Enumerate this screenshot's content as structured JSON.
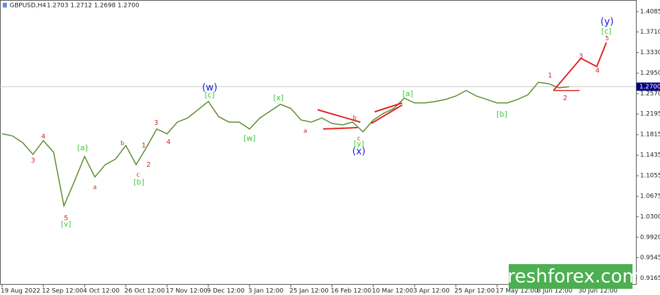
{
  "chart_data": {
    "type": "line",
    "symbol": "GBPUSD,H4",
    "ohlc": "1.2703 1.2712 1.2698 1.2700",
    "watermark": "freshforex.com",
    "color": "#5a8a28",
    "categories": [
      "19 Aug 2022",
      null,
      null,
      null,
      "12 Sep 12:00",
      null,
      null,
      null,
      "4 Oct 12:00",
      null,
      null,
      null,
      "26 Oct 12:00",
      null,
      null,
      null,
      "17 Nov 12:00",
      null,
      null,
      null,
      "9 Dec 12:00",
      null,
      null,
      null,
      "3 Jan 12:00",
      null,
      null,
      null,
      "25 Jan 12:00",
      null,
      null,
      null,
      "16 Feb 12:00",
      null,
      null,
      null,
      "10 Mar 12:00",
      null,
      null,
      null,
      "3 Apr 12:00",
      null,
      null,
      null,
      "25 Apr 12:00",
      null,
      null,
      null,
      "17 May 12:00",
      null,
      null,
      null,
      "8 Jun 12:00",
      null,
      null,
      null,
      "30 Jun 12:00",
      null,
      null,
      null,
      null,
      null
    ],
    "values": [
      1.183,
      1.1792,
      1.1666,
      1.145,
      1.1704,
      1.1488,
      1.05,
      1.0944,
      1.1412,
      1.1032,
      1.126,
      1.1362,
      1.1615,
      1.126,
      1.1577,
      1.1919,
      1.183,
      1.2046,
      1.2122,
      1.2274,
      1.2426,
      1.2147,
      1.2046,
      1.2046,
      1.1919,
      1.2122,
      1.2248,
      1.2375,
      1.2299,
      1.2084,
      1.2046,
      1.2122,
      1.202,
      1.1995,
      1.2046,
      1.1868,
      1.2084,
      1.221,
      1.2299,
      1.2489,
      1.24,
      1.24,
      1.2426,
      1.2464,
      1.2527,
      1.2628,
      1.2527,
      1.2464,
      1.24,
      1.24,
      1.2464,
      1.2552,
      1.278,
      1.2755,
      1.2679,
      1.27,
      null,
      null,
      null,
      null,
      null,
      null
    ],
    "ylim": [
      0.9044,
      1.43
    ],
    "yticks": [
      1.4085,
      {
        "value": 1.371,
        "label": "1.3710"
      },
      {
        "value": 1.333,
        "label": "1.3330"
      },
      {
        "value": 1.295,
        "label": "1.2950"
      },
      {
        "value": 1.257,
        "label": "1.2570"
      },
      1.2195,
      1.1815,
      1.1435,
      1.1055,
      1.0675,
      {
        "value": 1.03,
        "label": "1.0300"
      },
      {
        "value": 0.992,
        "label": "0.9920"
      },
      0.9545,
      0.9165
    ],
    "current_price": {
      "value": 1.27,
      "label": "1.2700"
    },
    "annotations": [
      {
        "text": "(w)",
        "color": "#1a1ae6"
      },
      {
        "text": "[c]",
        "color": "#33cc33"
      },
      {
        "text": "(x)",
        "color": "#1a1ae6"
      },
      {
        "text": "[y]",
        "color": "#33cc33"
      },
      {
        "text": "c",
        "color": "#d42a2a"
      },
      {
        "text": "(y)",
        "color": "#1a1ae6"
      },
      {
        "text": "[c]",
        "color": "#33cc33"
      },
      {
        "text": "5",
        "color": "#d42a2a"
      },
      {
        "text": "1",
        "color": "#d42a2a"
      },
      {
        "text": "2",
        "color": "#d42a2a"
      },
      {
        "text": "3",
        "color": "#d42a2a"
      },
      {
        "text": "4",
        "color": "#d42a2a"
      },
      {
        "text": "[a]",
        "color": "#33cc33"
      },
      {
        "text": "a",
        "color": "#d42a2a"
      },
      {
        "text": "3",
        "color": "#d42a2a"
      },
      {
        "text": "4",
        "color": "#d42a2a"
      },
      {
        "text": "5",
        "color": "#d42a2a"
      },
      {
        "text": "[v]",
        "color": "#33cc33"
      },
      {
        "text": "b",
        "color": "#d42a2a"
      },
      {
        "text": "c",
        "color": "#d42a2a"
      },
      {
        "text": "[b]",
        "color": "#33cc33"
      },
      {
        "text": "1",
        "color": "#d42a2a"
      },
      {
        "text": "2",
        "color": "#d42a2a"
      },
      {
        "text": "3",
        "color": "#d42a2a"
      },
      {
        "text": "4",
        "color": "#d42a2a"
      },
      {
        "text": "[w]",
        "color": "#33cc33"
      },
      {
        "text": "[x]",
        "color": "#33cc33"
      },
      {
        "text": "a",
        "color": "#d42a2a"
      },
      {
        "text": "b",
        "color": "#d42a2a"
      },
      {
        "text": "[a]",
        "color": "#33cc33"
      },
      {
        "text": "[b]",
        "color": "#33cc33"
      }
    ]
  }
}
